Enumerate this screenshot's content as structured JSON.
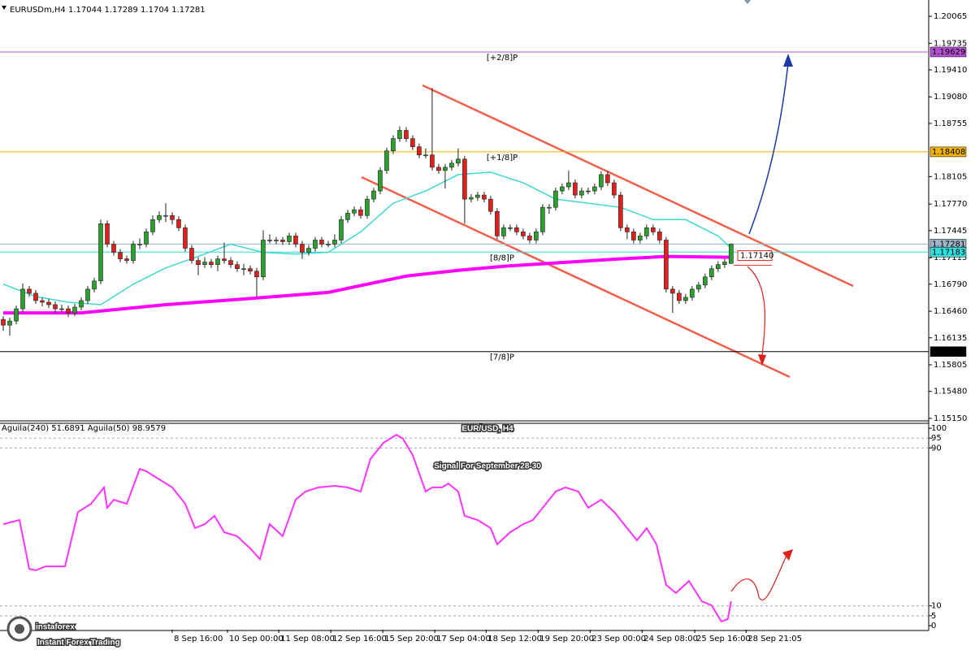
{
  "chart_data": [
    {
      "type": "candlestick",
      "title": "EURUSDm,H4",
      "ohlc": [
        [
          1.1636,
          1.164,
          1.1622,
          1.1629
        ],
        [
          1.1629,
          1.1638,
          1.1616,
          1.1634
        ],
        [
          1.1634,
          1.1653,
          1.163,
          1.1649
        ],
        [
          1.1649,
          1.168,
          1.1645,
          1.1673
        ],
        [
          1.1673,
          1.1677,
          1.1664,
          1.1668
        ],
        [
          1.1668,
          1.1672,
          1.1655,
          1.1659
        ],
        [
          1.1659,
          1.1663,
          1.1652,
          1.1657
        ],
        [
          1.1657,
          1.1661,
          1.165,
          1.1654
        ],
        [
          1.1654,
          1.1658,
          1.1644,
          1.1649
        ],
        [
          1.1649,
          1.1654,
          1.1645,
          1.1649
        ],
        [
          1.1649,
          1.1653,
          1.1639,
          1.1644
        ],
        [
          1.1644,
          1.1655,
          1.164,
          1.1651
        ],
        [
          1.1651,
          1.1663,
          1.1647,
          1.1659
        ],
        [
          1.1659,
          1.1677,
          1.1655,
          1.1673
        ],
        [
          1.1673,
          1.1687,
          1.1669,
          1.1683
        ],
        [
          1.1683,
          1.1758,
          1.1679,
          1.1753
        ],
        [
          1.1753,
          1.1757,
          1.1724,
          1.1728
        ],
        [
          1.1728,
          1.1732,
          1.1714,
          1.1718
        ],
        [
          1.1718,
          1.1722,
          1.1706,
          1.171
        ],
        [
          1.171,
          1.1714,
          1.1704,
          1.1708
        ],
        [
          1.1708,
          1.1732,
          1.1704,
          1.1728
        ],
        [
          1.1728,
          1.1735,
          1.1722,
          1.1728
        ],
        [
          1.1728,
          1.1747,
          1.1724,
          1.1743
        ],
        [
          1.1743,
          1.1763,
          1.1739,
          1.1758
        ],
        [
          1.1758,
          1.1768,
          1.1754,
          1.1763
        ],
        [
          1.1763,
          1.1778,
          1.1755,
          1.1763
        ],
        [
          1.1763,
          1.1767,
          1.1752,
          1.1758
        ],
        [
          1.1758,
          1.1762,
          1.1744,
          1.1748
        ],
        [
          1.1748,
          1.1752,
          1.1719,
          1.1723
        ],
        [
          1.1723,
          1.1727,
          1.1704,
          1.1708
        ],
        [
          1.1708,
          1.1712,
          1.169,
          1.1703
        ],
        [
          1.1703,
          1.1712,
          1.1699,
          1.1706
        ],
        [
          1.1706,
          1.171,
          1.1699,
          1.1703
        ],
        [
          1.1703,
          1.1714,
          1.1695,
          1.171
        ],
        [
          1.171,
          1.173,
          1.1704,
          1.1708
        ],
        [
          1.1708,
          1.1712,
          1.1699,
          1.1703
        ],
        [
          1.1703,
          1.1707,
          1.1694,
          1.1698
        ],
        [
          1.1698,
          1.1704,
          1.169,
          1.1698
        ],
        [
          1.1698,
          1.1702,
          1.1691,
          1.1695
        ],
        [
          1.1695,
          1.1699,
          1.1664,
          1.1688
        ],
        [
          1.1688,
          1.1745,
          1.1684,
          1.1733
        ],
        [
          1.1733,
          1.174,
          1.1729,
          1.1733
        ],
        [
          1.1733,
          1.1737,
          1.1728,
          1.1733
        ],
        [
          1.1733,
          1.1737,
          1.1727,
          1.1731
        ],
        [
          1.1731,
          1.1742,
          1.1727,
          1.1738
        ],
        [
          1.1738,
          1.1742,
          1.1724,
          1.1728
        ],
        [
          1.1728,
          1.1732,
          1.171,
          1.1718
        ],
        [
          1.1718,
          1.1727,
          1.1714,
          1.1723
        ],
        [
          1.1723,
          1.1737,
          1.1719,
          1.1733
        ],
        [
          1.1733,
          1.1737,
          1.1724,
          1.1728
        ],
        [
          1.1728,
          1.1732,
          1.1724,
          1.1728
        ],
        [
          1.1728,
          1.174,
          1.1724,
          1.1733
        ],
        [
          1.1733,
          1.1762,
          1.1729,
          1.1758
        ],
        [
          1.1758,
          1.177,
          1.1754,
          1.1766
        ],
        [
          1.1766,
          1.1774,
          1.1762,
          1.177
        ],
        [
          1.177,
          1.1774,
          1.1759,
          1.1763
        ],
        [
          1.1763,
          1.1787,
          1.1759,
          1.1783
        ],
        [
          1.1783,
          1.1797,
          1.1779,
          1.1793
        ],
        [
          1.1793,
          1.1822,
          1.1789,
          1.1818
        ],
        [
          1.1818,
          1.1846,
          1.1814,
          1.1842
        ],
        [
          1.1842,
          1.1861,
          1.1838,
          1.1857
        ],
        [
          1.1857,
          1.1872,
          1.1853,
          1.1867
        ],
        [
          1.1867,
          1.1871,
          1.1853,
          1.1857
        ],
        [
          1.1857,
          1.1861,
          1.1843,
          1.1847
        ],
        [
          1.1847,
          1.1851,
          1.1833,
          1.1837
        ],
        [
          1.1837,
          1.1845,
          1.1833,
          1.1837
        ],
        [
          1.1837,
          1.1919,
          1.1818,
          1.1822
        ],
        [
          1.1822,
          1.1826,
          1.1814,
          1.1818
        ],
        [
          1.1818,
          1.1826,
          1.1796,
          1.1822
        ],
        [
          1.1822,
          1.1831,
          1.1818,
          1.1827
        ],
        [
          1.1827,
          1.1845,
          1.1823,
          1.1832
        ],
        [
          1.1832,
          1.1836,
          1.1753,
          1.1783
        ],
        [
          1.1783,
          1.1789,
          1.1779,
          1.1785
        ],
        [
          1.1785,
          1.1792,
          1.1781,
          1.1788
        ],
        [
          1.1788,
          1.1792,
          1.1779,
          1.1783
        ],
        [
          1.1783,
          1.1787,
          1.1764,
          1.1768
        ],
        [
          1.1768,
          1.1772,
          1.1734,
          1.1738
        ],
        [
          1.1738,
          1.1752,
          1.1734,
          1.1748
        ],
        [
          1.1748,
          1.1752,
          1.1744,
          1.1748
        ],
        [
          1.1748,
          1.1752,
          1.1739,
          1.1743
        ],
        [
          1.1743,
          1.1747,
          1.1734,
          1.1738
        ],
        [
          1.1738,
          1.1742,
          1.1729,
          1.1733
        ],
        [
          1.1733,
          1.1747,
          1.1729,
          1.1743
        ],
        [
          1.1743,
          1.1777,
          1.1739,
          1.1773
        ],
        [
          1.1773,
          1.1777,
          1.1765,
          1.1773
        ],
        [
          1.1773,
          1.1797,
          1.1769,
          1.1793
        ],
        [
          1.1793,
          1.1802,
          1.1789,
          1.1798
        ],
        [
          1.1798,
          1.1818,
          1.1794,
          1.1803
        ],
        [
          1.1803,
          1.1807,
          1.1784,
          1.1788
        ],
        [
          1.1788,
          1.1797,
          1.1784,
          1.1793
        ],
        [
          1.1793,
          1.1797,
          1.1789,
          1.1793
        ],
        [
          1.1793,
          1.1802,
          1.1789,
          1.1798
        ],
        [
          1.1798,
          1.1817,
          1.1794,
          1.1813
        ],
        [
          1.1813,
          1.1817,
          1.1799,
          1.1803
        ],
        [
          1.1803,
          1.1807,
          1.1784,
          1.1788
        ],
        [
          1.1788,
          1.1792,
          1.1744,
          1.1748
        ],
        [
          1.1748,
          1.1752,
          1.1734,
          1.1743
        ],
        [
          1.1743,
          1.1747,
          1.1729,
          1.1733
        ],
        [
          1.1733,
          1.1742,
          1.1729,
          1.1738
        ],
        [
          1.1738,
          1.1752,
          1.1734,
          1.1748
        ],
        [
          1.1748,
          1.1752,
          1.1739,
          1.1743
        ],
        [
          1.1743,
          1.1747,
          1.1729,
          1.1733
        ],
        [
          1.1733,
          1.1737,
          1.1669,
          1.1673
        ],
        [
          1.1673,
          1.1677,
          1.1644,
          1.1668
        ],
        [
          1.1668,
          1.1672,
          1.1655,
          1.1659
        ],
        [
          1.1659,
          1.1667,
          1.1655,
          1.1663
        ],
        [
          1.1663,
          1.1677,
          1.1659,
          1.1673
        ],
        [
          1.1673,
          1.1682,
          1.1669,
          1.1678
        ],
        [
          1.1678,
          1.1692,
          1.1674,
          1.1688
        ],
        [
          1.1688,
          1.1702,
          1.1684,
          1.1698
        ],
        [
          1.1698,
          1.1707,
          1.1694,
          1.1703
        ],
        [
          1.1703,
          1.171,
          1.1699,
          1.1706
        ],
        [
          1.17044,
          1.17289,
          1.1704,
          1.17281
        ]
      ],
      "up_color": "#2ca02c",
      "down_color": "#e0201c",
      "xlim": [
        -0.5,
        142.4
      ],
      "xticks": [
        {
          "value": 26,
          "label": "8 Sep 16:00"
        },
        {
          "value": 34.5,
          "label": "10 Sep 00:00"
        },
        {
          "value": 42.4,
          "label": "11 Sep 08:00"
        },
        {
          "value": 50.4,
          "label": "12 Sep 16:00"
        },
        {
          "value": 58.4,
          "label": "15 Sep 20:00"
        },
        {
          "value": 66.4,
          "label": "17 Sep 04:00"
        },
        {
          "value": 74.3,
          "label": "18 Sep 12:00"
        },
        {
          "value": 82.3,
          "label": "19 Sep 20:00"
        },
        {
          "value": 90.3,
          "label": "23 Sep 00:00"
        },
        {
          "value": 98.3,
          "label": "24 Sep 08:00"
        },
        {
          "value": 106.4,
          "label": "25 Sep 16:00"
        },
        {
          "value": 114.3,
          "label": "28 Sep 21:05"
        }
      ],
      "ylim": [
        1.1512,
        1.20264
      ],
      "yticks": [
        1.20065,
        1.19735,
        {
          "value": 1.1941,
          "label": "1.19410"
        },
        {
          "value": 1.1908,
          "label": "1.19080"
        },
        1.18755,
        1.18105,
        {
          "value": 1.1777,
          "label": "1.17770"
        },
        1.17445,
        1.17115,
        {
          "value": 1.1679,
          "label": "1.16790"
        },
        {
          "value": 1.1646,
          "label": "1.16460"
        },
        1.16135,
        1.15805,
        {
          "value": 1.1548,
          "label": "1.15480"
        },
        {
          "value": 1.1515,
          "label": "1.15150"
        }
      ],
      "lines": [
        {
          "color": "#40d8d0",
          "width": 1.5,
          "x": [
            0,
            5,
            10,
            15,
            20,
            25,
            30,
            35,
            40,
            45,
            50,
            55,
            60,
            65,
            70,
            75,
            80,
            85,
            90,
            95,
            100,
            105,
            110,
            112
          ],
          "values": [
            1.1679,
            1.1664,
            1.1657,
            1.1654,
            1.1679,
            1.1699,
            1.1713,
            1.1728,
            1.1718,
            1.1716,
            1.1718,
            1.1743,
            1.1778,
            1.1793,
            1.1813,
            1.1816,
            1.1803,
            1.1783,
            1.1778,
            1.1773,
            1.1758,
            1.1758,
            1.1738,
            1.1723
          ]
        },
        {
          "color": "#ff00ff",
          "width": 4,
          "x": [
            0,
            12,
            25,
            37,
            50,
            56,
            62,
            70,
            77,
            87,
            95,
            102,
            112
          ],
          "values": [
            1.1644,
            1.1644,
            1.1654,
            1.1661,
            1.1669,
            1.1679,
            1.1689,
            1.1696,
            1.1701,
            1.1706,
            1.171,
            1.1713,
            1.1712
          ]
        }
      ],
      "levels": [
        {
          "label": "[+2/8]P",
          "value": 1.19629,
          "color": "#b44fd0"
        },
        {
          "label": "[+1/8]P",
          "value": 1.18408,
          "color": "#f0b400"
        },
        {
          "value": 1.17281,
          "color": "#9fb4c8"
        },
        {
          "label": "[8/8]P",
          "value": 1.17183,
          "color": "#30e0e0"
        },
        {
          "label": "[7/8]P",
          "value": 1.15967,
          "color": "#000000"
        }
      ],
      "target": {
        "value": 1.1714,
        "label": "1.17140",
        "color": "#e0201c"
      },
      "heading": "EUR/USD, H4",
      "subtitle": "Signal For September 28-30",
      "watermark": {
        "name": "instaforex",
        "tagline": "Instant Forex Trading"
      }
    },
    {
      "type": "line",
      "title": "Aguila(240) 51.6891  Aguila(50) 98.9579",
      "color": "#ff33ff",
      "x": [
        0,
        2.5,
        4,
        5,
        6.5,
        9.5,
        11.5,
        13.5,
        15.5,
        16,
        17,
        19,
        21,
        22,
        24,
        26,
        28,
        29.5,
        31,
        32.5,
        34,
        36,
        38,
        39.5,
        41,
        43,
        45,
        46.5,
        48.5,
        51,
        53,
        55,
        56.5,
        58.5,
        60.5,
        61.5,
        63,
        65,
        66,
        67.5,
        68.5,
        70,
        71,
        73,
        75,
        76,
        78,
        80,
        81.5,
        83,
        85,
        86.5,
        88.5,
        90,
        92,
        94,
        95.5,
        97.5,
        99,
        100.5,
        102,
        103.5,
        105.5,
        107.5,
        109,
        110.5,
        111.5,
        112
      ],
      "values": [
        51.4,
        53.5,
        28.8,
        28.0,
        30.0,
        30.0,
        57.6,
        61.7,
        70.0,
        59.7,
        63.8,
        61.7,
        79.4,
        78.2,
        74.1,
        70.0,
        61.7,
        49.4,
        51.4,
        55.6,
        47.3,
        45.3,
        39.1,
        33.7,
        51.4,
        45.3,
        63.8,
        67.9,
        70.0,
        70.8,
        70.0,
        67.9,
        84.4,
        92.6,
        96.7,
        94.7,
        86.4,
        67.9,
        70.0,
        70.0,
        72.0,
        67.9,
        55.6,
        53.5,
        49.4,
        41.2,
        47.3,
        51.4,
        53.5,
        59.7,
        67.9,
        70.0,
        67.9,
        59.7,
        63.8,
        57.6,
        51.4,
        43.2,
        49.4,
        41.2,
        20.6,
        16.5,
        22.6,
        12.3,
        10.3,
        2.1,
        3.3,
        12.3
      ],
      "ylim": [
        -2.06,
        102.9
      ],
      "yticks": [
        0,
        5,
        10,
        90,
        95,
        100
      ],
      "dashed": [
        5,
        10,
        90,
        95
      ]
    }
  ]
}
